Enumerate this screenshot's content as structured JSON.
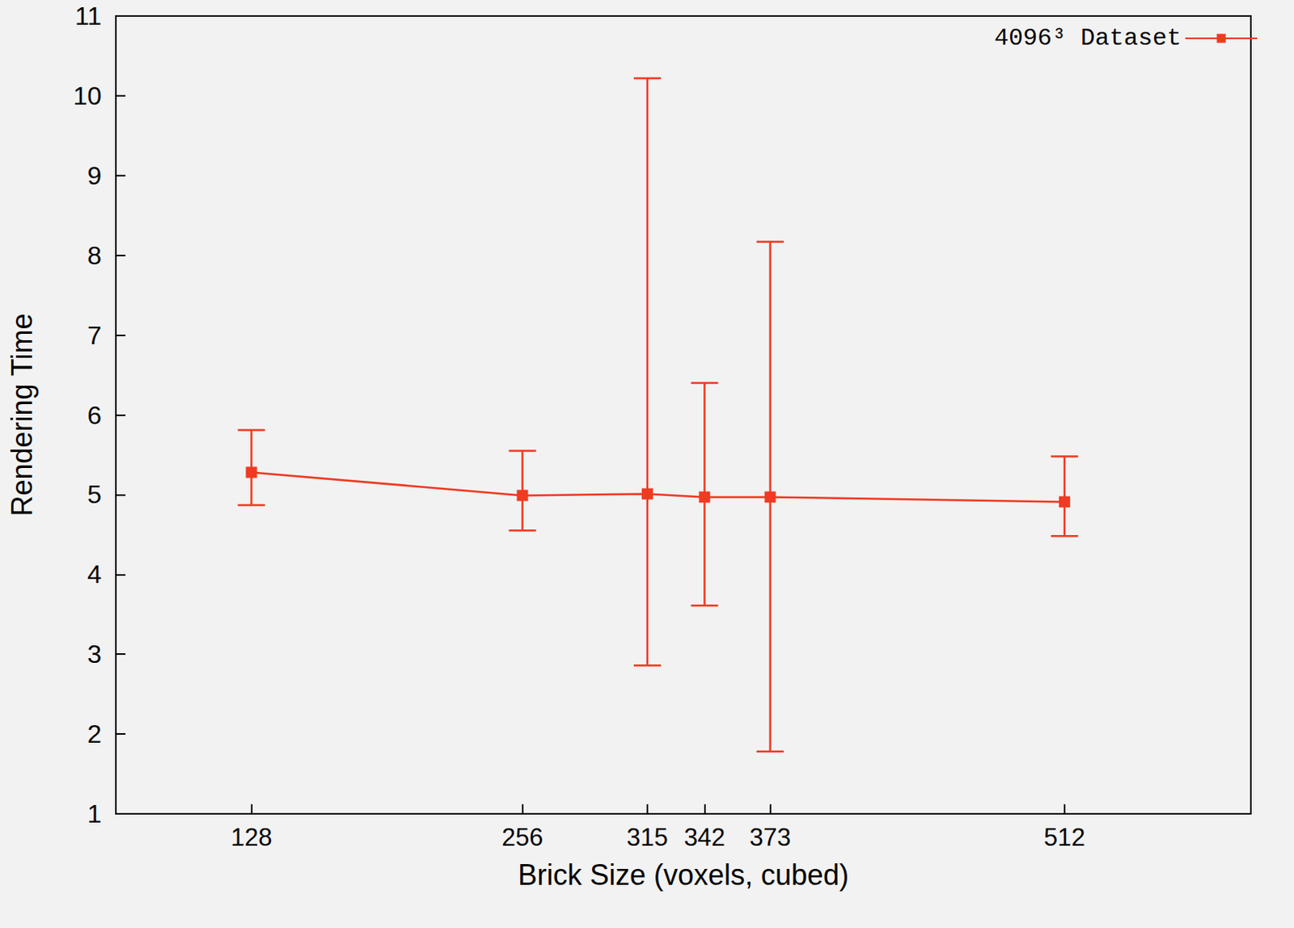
{
  "chart_data": {
    "type": "line",
    "x_label": "Brick Size (voxels, cubed)",
    "y_label": "Rendering Time",
    "xlim": [
      64,
      600
    ],
    "xticks": [
      128,
      256,
      315,
      342,
      373,
      512
    ],
    "ylim": [
      1,
      11
    ],
    "yticks": [
      1,
      2,
      3,
      4,
      5,
      6,
      7,
      8,
      9,
      10,
      11
    ],
    "grid": false,
    "legend": "top-right",
    "series": [
      {
        "name": "4096³ Dataset",
        "color": "#f03a21",
        "marker": "square",
        "line_style": "solid",
        "x": [
          128,
          256,
          315,
          342,
          373,
          512
        ],
        "values": [
          5.28,
          4.99,
          5.01,
          4.97,
          4.97,
          4.91
        ],
        "error_lower": [
          4.87,
          4.55,
          2.86,
          3.61,
          1.78,
          4.48
        ],
        "error_upper": [
          5.81,
          5.55,
          10.22,
          6.4,
          8.17,
          5.48
        ]
      }
    ]
  }
}
